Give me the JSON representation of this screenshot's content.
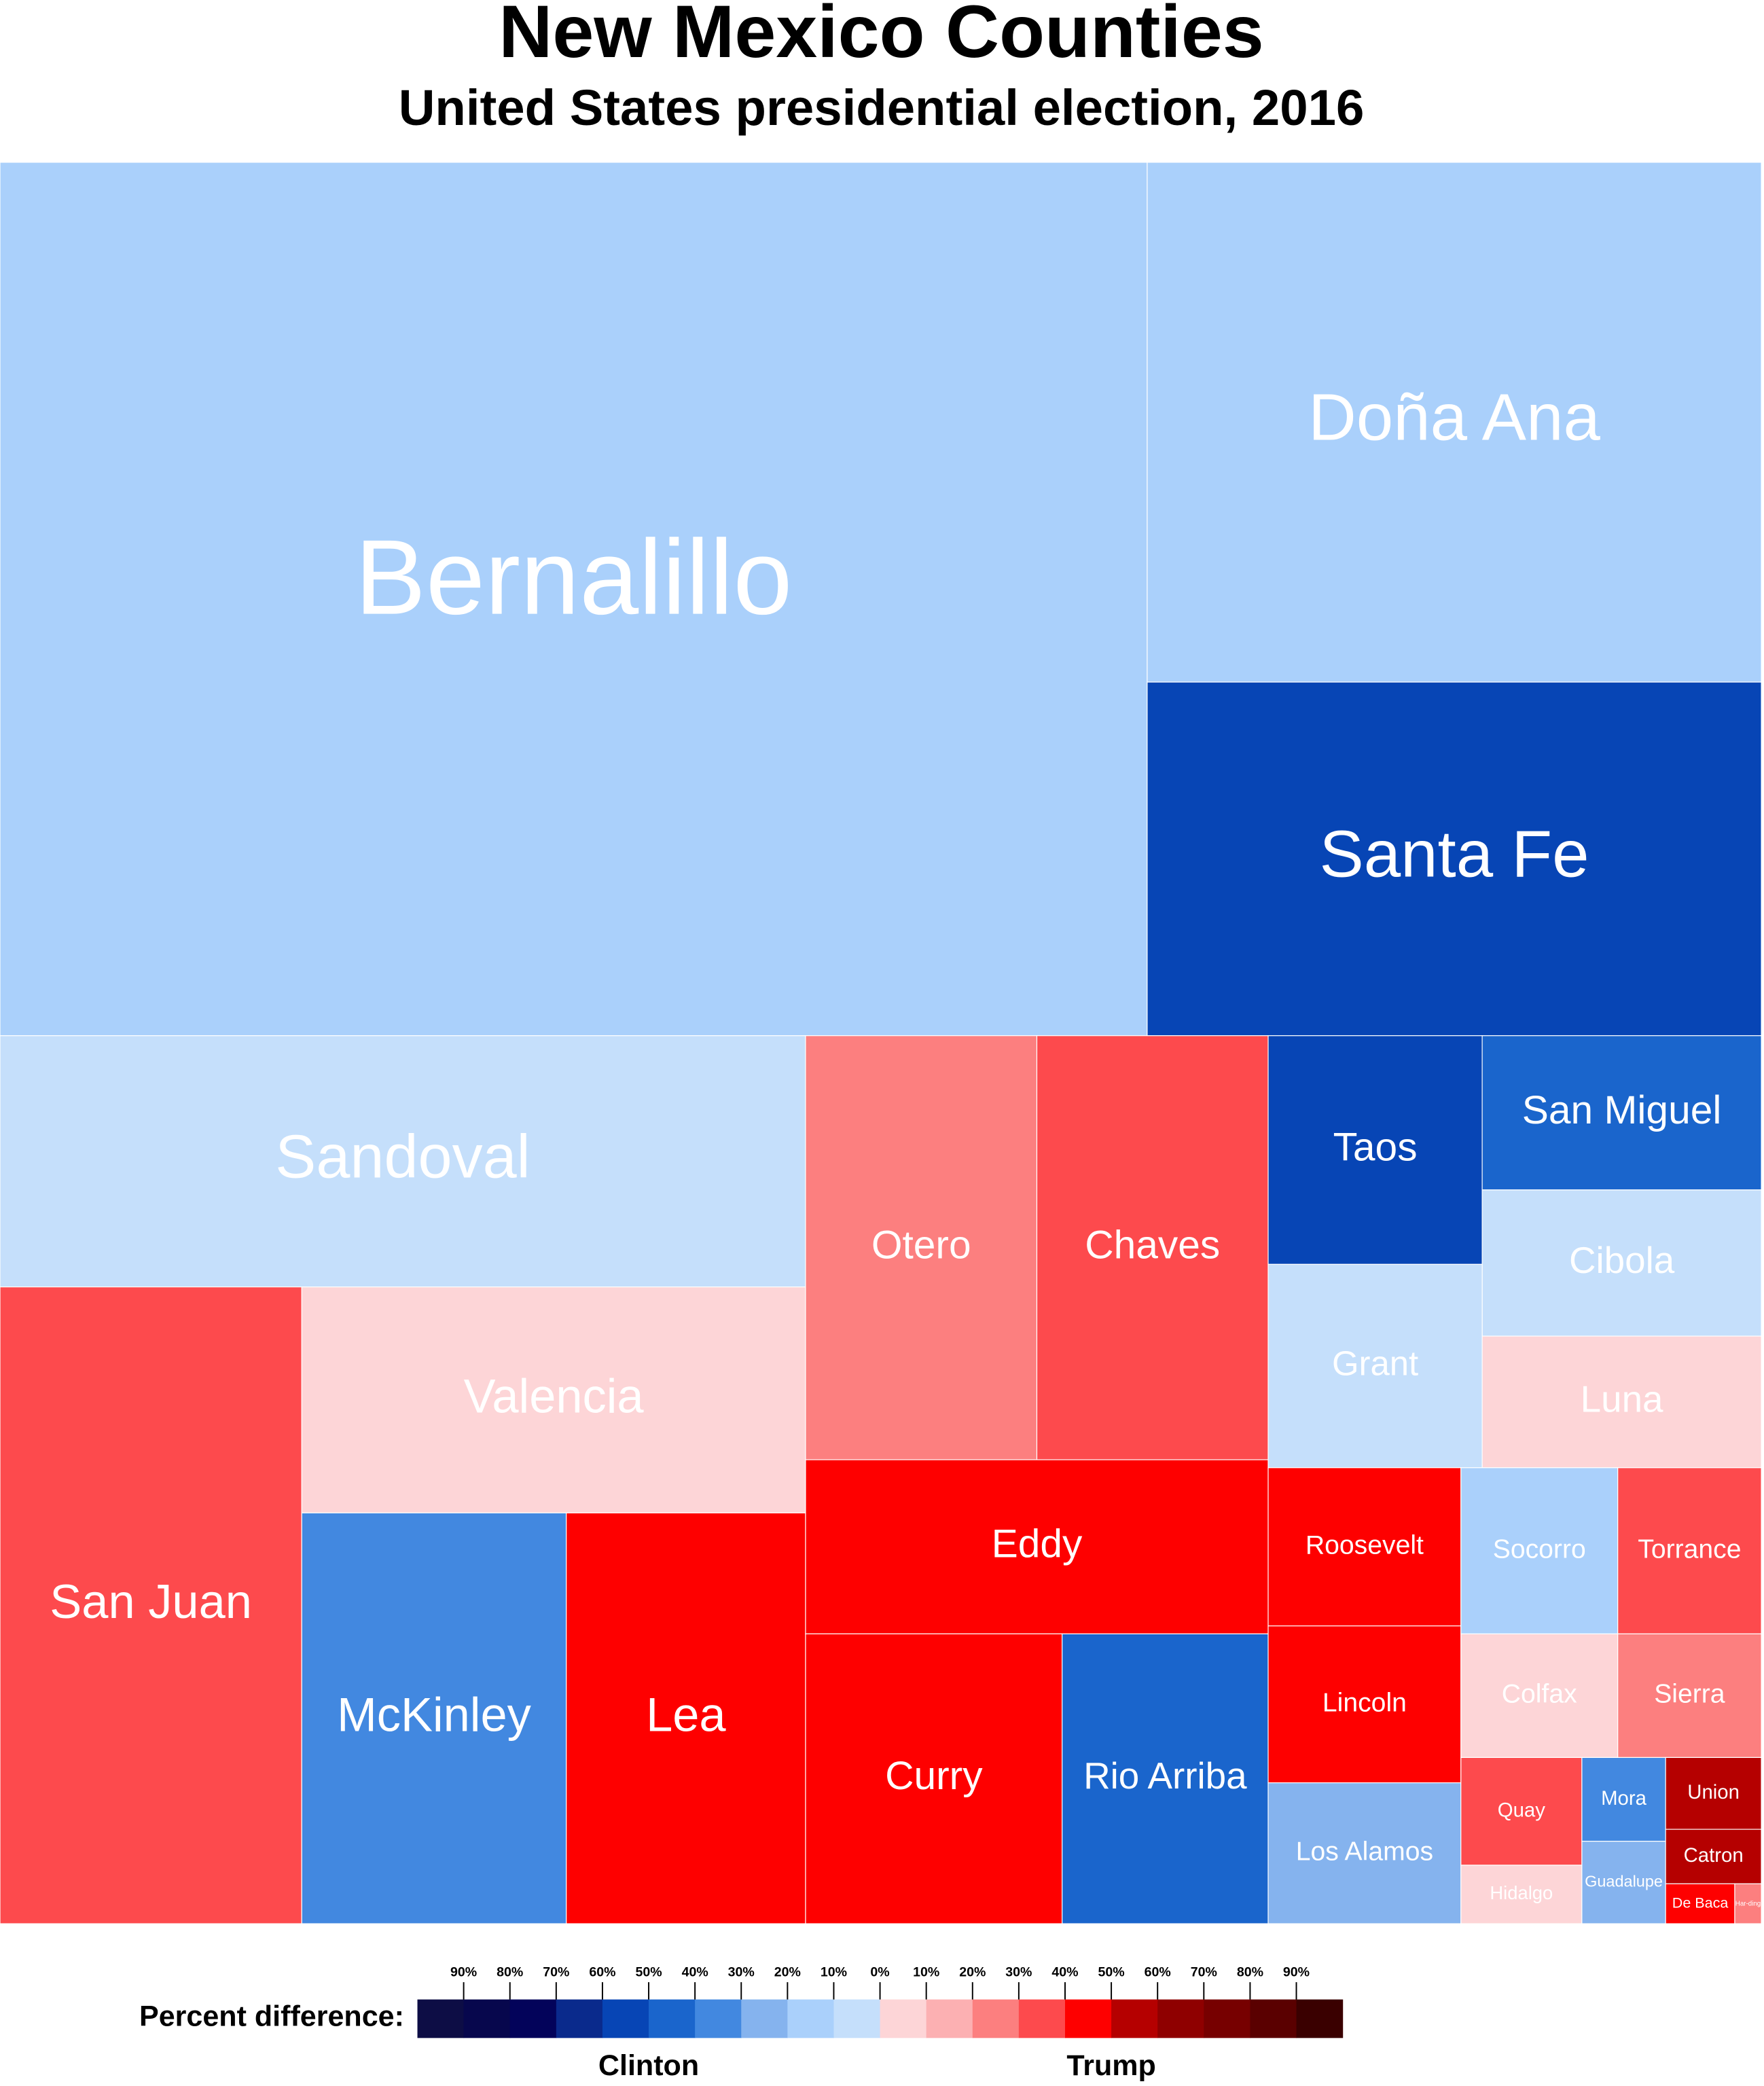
{
  "chart_data": {
    "type": "treemap",
    "title": "New Mexico Counties",
    "subtitle": "United States presidential election, 2016",
    "counties": [
      {
        "name": "Bernalillo",
        "color": "#aad0fb"
      },
      {
        "name": "Doña Ana",
        "color": "#aad0fb"
      },
      {
        "name": "Santa Fe",
        "color": "#0745b5"
      },
      {
        "name": "Sandoval",
        "color": "#c5dffb"
      },
      {
        "name": "San Juan",
        "color": "#fd4a4d"
      },
      {
        "name": "Valencia",
        "color": "#fdd5d7"
      },
      {
        "name": "McKinley",
        "color": "#4288e0"
      },
      {
        "name": "Lea",
        "color": "#fe0000"
      },
      {
        "name": "Otero",
        "color": "#fc7f7f"
      },
      {
        "name": "Chaves",
        "color": "#fd4a4d"
      },
      {
        "name": "Eddy",
        "color": "#fe0000"
      },
      {
        "name": "Curry",
        "color": "#fe0000"
      },
      {
        "name": "Rio Arriba",
        "color": "#1a65cc"
      },
      {
        "name": "Taos",
        "color": "#0745b5"
      },
      {
        "name": "San Miguel",
        "color": "#1a65cc"
      },
      {
        "name": "Cibola",
        "color": "#c5dffb"
      },
      {
        "name": "Grant",
        "color": "#c5dffb"
      },
      {
        "name": "Luna",
        "color": "#fdd5d7"
      },
      {
        "name": "Roosevelt",
        "color": "#fe0000"
      },
      {
        "name": "Lincoln",
        "color": "#fe0000"
      },
      {
        "name": "Los Alamos",
        "color": "#85b3ee"
      },
      {
        "name": "Socorro",
        "color": "#aad0fb"
      },
      {
        "name": "Torrance",
        "color": "#fd4a4d"
      },
      {
        "name": "Colfax",
        "color": "#fdd5d7"
      },
      {
        "name": "Sierra",
        "color": "#fc7f7f"
      },
      {
        "name": "Quay",
        "color": "#fd4a4d"
      },
      {
        "name": "Hidalgo",
        "color": "#fdd5d7"
      },
      {
        "name": "Mora",
        "color": "#4288e0"
      },
      {
        "name": "Guadalupe",
        "color": "#85b3ee"
      },
      {
        "name": "Union",
        "color": "#b50000"
      },
      {
        "name": "Catron",
        "color": "#b50000"
      },
      {
        "name": "De Baca",
        "color": "#fe0000"
      },
      {
        "name": "Har-ding",
        "color": "#fc7f7f"
      }
    ],
    "legend": {
      "label": "Percent difference:",
      "left_label": "Clinton",
      "right_label": "Trump",
      "range": [
        -100,
        100
      ],
      "colors": [
        "#0d0d45",
        "#07074d",
        "#03035a",
        "#0a2a8c",
        "#0745b5",
        "#1a65cc",
        "#4288e0",
        "#85b3ee",
        "#aad0fb",
        "#c5dffb",
        "#fdd5d7",
        "#fcb0b2",
        "#fc7f7f",
        "#fd4a4d",
        "#fe0000",
        "#b50000",
        "#8f0000",
        "#770000",
        "#5a0000",
        "#3a0000"
      ],
      "ticks": [
        {
          "value": -90,
          "label": "90%"
        },
        {
          "value": -80,
          "label": "80%"
        },
        {
          "value": -70,
          "label": "70%"
        },
        {
          "value": -60,
          "label": "60%"
        },
        {
          "value": -50,
          "label": "50%"
        },
        {
          "value": -40,
          "label": "40%"
        },
        {
          "value": -30,
          "label": "30%"
        },
        {
          "value": -20,
          "label": "20%"
        },
        {
          "value": -10,
          "label": "10%"
        },
        {
          "value": 0,
          "label": "0%"
        },
        {
          "value": 10,
          "label": "10%"
        },
        {
          "value": 20,
          "label": "20%"
        },
        {
          "value": 30,
          "label": "30%"
        },
        {
          "value": 40,
          "label": "40%"
        },
        {
          "value": 50,
          "label": "50%"
        },
        {
          "value": 60,
          "label": "60%"
        },
        {
          "value": 70,
          "label": "70%"
        },
        {
          "value": 80,
          "label": "80%"
        },
        {
          "value": 90,
          "label": "90%"
        }
      ]
    }
  }
}
